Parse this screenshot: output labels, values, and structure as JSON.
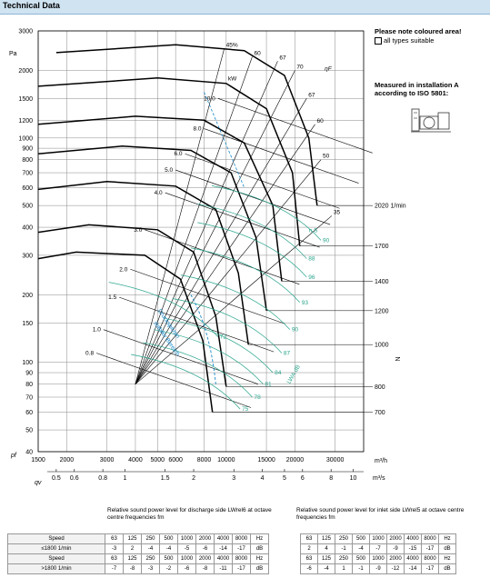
{
  "header": {
    "title": "Technical Data"
  },
  "notes": {
    "colour_note": "Please note coloured area!",
    "all_types": "all types suitable",
    "measured_line1": "Measured in installation A",
    "measured_line2": "according to ISO 5801:"
  },
  "chart_data": {
    "type": "line",
    "ylabel": "Pa",
    "xlabel_top": "m³/h",
    "xlabel_bottom": "m³/s",
    "y_axis_sub": "pf",
    "x_axis_sub": "qv",
    "y_ticks": [
      3000,
      2000,
      1500,
      1200,
      1000,
      900,
      800,
      700,
      600,
      500,
      400,
      300,
      200,
      150,
      100,
      90,
      80,
      70,
      60,
      50,
      40
    ],
    "x_ticks_m3h": [
      1500,
      2000,
      3000,
      4000,
      5000,
      6000,
      8000,
      10000,
      15000,
      20000,
      30000
    ],
    "x_ticks_m3s": [
      0.5,
      0.6,
      0.8,
      1.0,
      1.5,
      2.0,
      3.0,
      4.0,
      5.0,
      6.0,
      8.0,
      10
    ],
    "speed_ticks_label": "1/min",
    "speed_ticks": [
      2020,
      1700,
      1400,
      1200,
      1000,
      800,
      700
    ],
    "speed_axis_name": "N",
    "power_label": "kW",
    "power_values": [
      "10.0",
      "8.0",
      "6.0",
      "5.0",
      "4.0",
      "3.0",
      "2.0",
      "1.5",
      "1.0",
      "0.8"
    ],
    "efficiency_labels": [
      "45%",
      "60",
      "67",
      "70",
      "67",
      "60",
      "50",
      "35"
    ],
    "efficiency_axis_name": "ηF",
    "sound_labels": [
      "90",
      "88",
      "96",
      "93",
      "90",
      "87",
      "84",
      "81",
      "78",
      "75",
      "72"
    ],
    "ns_label": "n S",
    "lwa_label": "LWA dB",
    "blue_label": "Druckspitzen",
    "blue_label2": "stabiler Bereich",
    "speed_curves": [
      {
        "rpm": 2020,
        "points": [
          [
            1800,
            2400
          ],
          [
            6000,
            2600
          ],
          [
            12000,
            2450
          ],
          [
            18000,
            1900
          ],
          [
            23000,
            1000
          ],
          [
            25000,
            500
          ]
        ]
      },
      {
        "rpm": 1700,
        "points": [
          [
            1500,
            1700
          ],
          [
            5000,
            1850
          ],
          [
            10000,
            1750
          ],
          [
            15000,
            1350
          ],
          [
            19500,
            700
          ],
          [
            21000,
            330
          ]
        ]
      },
      {
        "rpm": 1400,
        "points": [
          [
            1500,
            1150
          ],
          [
            4000,
            1250
          ],
          [
            8000,
            1200
          ],
          [
            12000,
            950
          ],
          [
            16000,
            500
          ],
          [
            17500,
            230
          ]
        ]
      },
      {
        "rpm": 1200,
        "points": [
          [
            1500,
            850
          ],
          [
            3500,
            920
          ],
          [
            7000,
            880
          ],
          [
            10500,
            700
          ],
          [
            13500,
            360
          ],
          [
            15000,
            170
          ]
        ]
      },
      {
        "rpm": 1000,
        "points": [
          [
            1500,
            590
          ],
          [
            3000,
            640
          ],
          [
            6000,
            610
          ],
          [
            9000,
            480
          ],
          [
            11300,
            250
          ],
          [
            12500,
            120
          ]
        ]
      },
      {
        "rpm": 800,
        "points": [
          [
            1500,
            380
          ],
          [
            2500,
            410
          ],
          [
            5000,
            390
          ],
          [
            7200,
            310
          ],
          [
            9000,
            160
          ],
          [
            10000,
            78
          ]
        ]
      },
      {
        "rpm": 700,
        "points": [
          [
            1500,
            290
          ],
          [
            2200,
            310
          ],
          [
            4400,
            300
          ],
          [
            6300,
            235
          ],
          [
            7900,
            125
          ],
          [
            8700,
            60
          ]
        ]
      }
    ]
  },
  "tables": {
    "discharge_caption": "Relative sound power level for discharge side LWrel6 at octave centre frequencies fm",
    "inlet_caption": "Relative sound power level for inlet side LWrel5 at octave centre frequencies fm",
    "freq_header": [
      "63",
      "125",
      "250",
      "500",
      "1000",
      "2000",
      "4000",
      "8000",
      "Hz"
    ],
    "rows": [
      {
        "label": "Speed",
        "left": [
          "63",
          "125",
          "250",
          "500",
          "1000",
          "2000",
          "4000",
          "8000",
          "Hz"
        ],
        "right": [
          "63",
          "125",
          "250",
          "500",
          "1000",
          "2000",
          "4000",
          "8000",
          "Hz"
        ]
      },
      {
        "label": "≤1800 1/min",
        "left": [
          "-3",
          "2",
          "-4",
          "-4",
          "-5",
          "-6",
          "-14",
          "-17",
          "dB"
        ],
        "right": [
          "2",
          "4",
          "-1",
          "-4",
          "-7",
          "-9",
          "-15",
          "-17",
          "dB"
        ]
      },
      {
        "label": "Speed",
        "left": [
          "63",
          "125",
          "250",
          "500",
          "1000",
          "2000",
          "4000",
          "8000",
          "Hz"
        ],
        "right": [
          "63",
          "125",
          "250",
          "500",
          "1000",
          "2000",
          "4000",
          "8000",
          "Hz"
        ]
      },
      {
        "label": ">1800 1/min",
        "left": [
          "-7",
          "-8",
          "-3",
          "-2",
          "-6",
          "-8",
          "-11",
          "-17",
          "dB"
        ],
        "right": [
          "-6",
          "-4",
          "1",
          "-1",
          "-9",
          "-12",
          "-14",
          "-17",
          "dB"
        ]
      }
    ]
  },
  "colors": {
    "grid": "#888888",
    "curve": "#000000",
    "green": "#2aa58c",
    "blue": "#1a8acb",
    "header": "#cfe3f1"
  }
}
